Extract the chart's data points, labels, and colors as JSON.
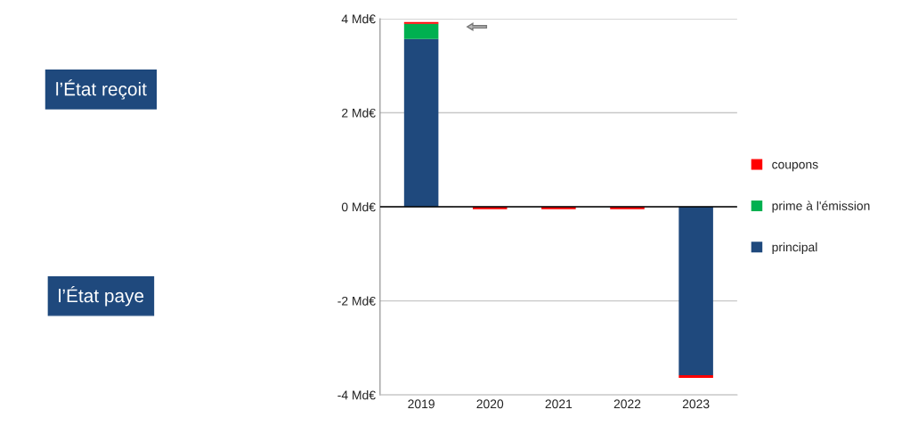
{
  "chart_data": {
    "type": "bar",
    "stacked": true,
    "categories": [
      "2019",
      "2020",
      "2021",
      "2022",
      "2023"
    ],
    "series": [
      {
        "name": "principal",
        "color": "#1f497d",
        "values": [
          3.57,
          0,
          0,
          0,
          -3.58
        ]
      },
      {
        "name": "prime à l'émission",
        "color": "#00b050",
        "values": [
          0.32,
          0,
          0,
          0,
          0
        ]
      },
      {
        "name": "coupons",
        "color": "#ff0000",
        "values": [
          0.04,
          -0.05,
          -0.05,
          -0.05,
          -0.06
        ]
      }
    ],
    "ylim": [
      -4,
      4
    ],
    "yticks": [
      {
        "value": -4,
        "label": "-4 Md€"
      },
      {
        "value": -2,
        "label": "-2 Md€"
      },
      {
        "value": 0,
        "label": "0 Md€"
      },
      {
        "value": 2,
        "label": "2 Md€"
      },
      {
        "value": 4,
        "label": "4 Md€"
      }
    ],
    "grid": "y",
    "legend": "right",
    "ref_lines": [
      {
        "axis": "y",
        "value": 0,
        "color": "#000000"
      }
    ],
    "annotations": [
      "l’État reçoit",
      "l’État paye"
    ]
  }
}
